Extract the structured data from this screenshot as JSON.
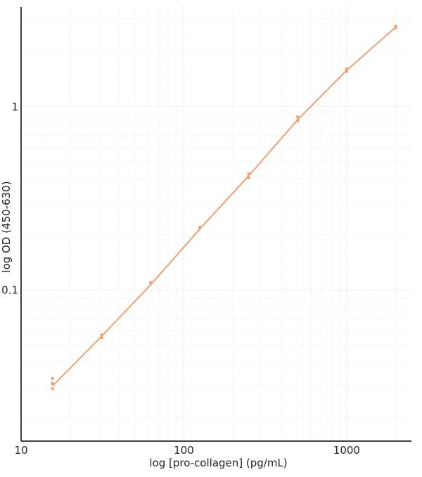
{
  "chart_data": {
    "type": "scatter",
    "title": "",
    "xlabel": "log [pro-collagen] (pg/mL)",
    "ylabel": "log OD (450-630)",
    "x_scale": "log",
    "y_scale": "log",
    "xlim": [
      10,
      2500
    ],
    "ylim": [
      0.015,
      3.5
    ],
    "x_ticks": [
      10,
      100,
      1000
    ],
    "x_tick_labels": [
      "10",
      "100",
      "1000"
    ],
    "y_ticks": [
      0.1,
      1
    ],
    "y_tick_labels": [
      "0.1",
      "1"
    ],
    "grid": true,
    "series_color": "#f0a070",
    "series": [
      {
        "points": [
          {
            "x": 15.6,
            "y": 0.033
          },
          {
            "x": 15.6,
            "y": 0.031
          },
          {
            "x": 15.6,
            "y": 0.029
          },
          {
            "x": 31.25,
            "y": 0.057
          },
          {
            "x": 31.25,
            "y": 0.055
          },
          {
            "x": 62.5,
            "y": 0.11
          },
          {
            "x": 125,
            "y": 0.22
          },
          {
            "x": 250,
            "y": 0.43
          },
          {
            "x": 250,
            "y": 0.41
          },
          {
            "x": 500,
            "y": 0.88
          },
          {
            "x": 500,
            "y": 0.84
          },
          {
            "x": 1000,
            "y": 1.61
          },
          {
            "x": 1000,
            "y": 1.56
          },
          {
            "x": 2000,
            "y": 2.75
          },
          {
            "x": 2000,
            "y": 2.7
          }
        ],
        "fit_curve": [
          {
            "x": 15.6,
            "y": 0.03
          },
          {
            "x": 31.25,
            "y": 0.056
          },
          {
            "x": 62.5,
            "y": 0.107
          },
          {
            "x": 125,
            "y": 0.215
          },
          {
            "x": 250,
            "y": 0.42
          },
          {
            "x": 500,
            "y": 0.85
          },
          {
            "x": 1000,
            "y": 1.58
          },
          {
            "x": 2000,
            "y": 2.72
          }
        ]
      }
    ]
  }
}
